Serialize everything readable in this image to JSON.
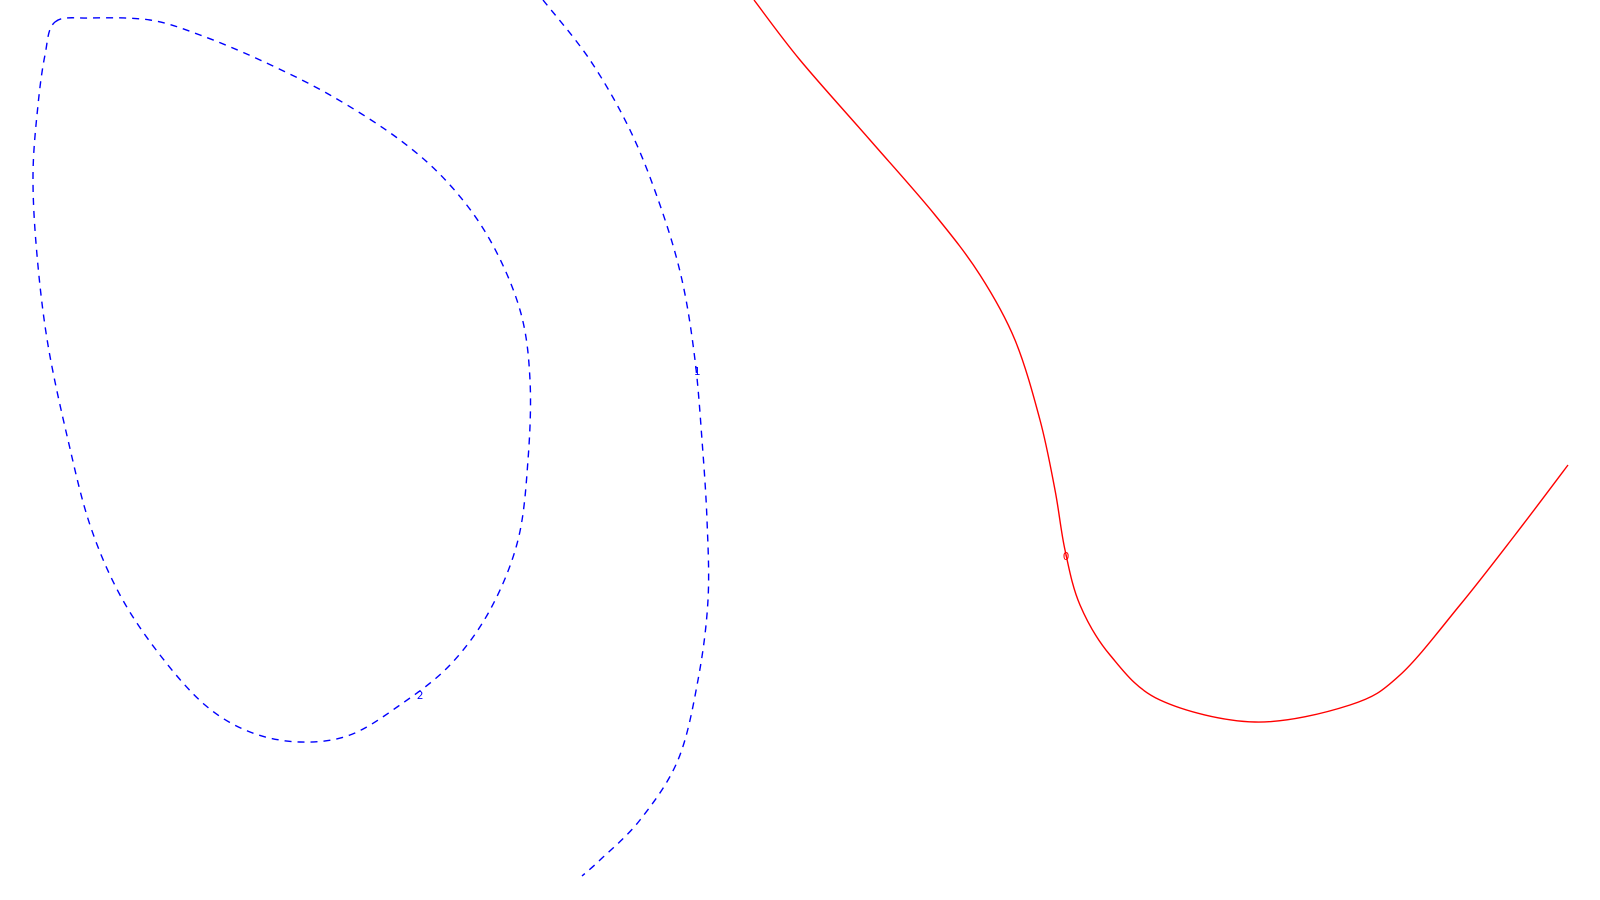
{
  "chart_data": {
    "type": "contour",
    "title": "",
    "xlabel": "",
    "ylabel": "",
    "grid": false,
    "legend": "none",
    "levels": [
      {
        "label": "2",
        "value": 2,
        "color": "#0000ff",
        "style": "dashed",
        "closed": true,
        "points": [
          [
            55,
            22
          ],
          [
            90,
            18
          ],
          [
            150,
            20
          ],
          [
            200,
            35
          ],
          [
            260,
            60
          ],
          [
            330,
            95
          ],
          [
            400,
            140
          ],
          [
            450,
            185
          ],
          [
            490,
            240
          ],
          [
            520,
            310
          ],
          [
            530,
            380
          ],
          [
            528,
            460
          ],
          [
            518,
            540
          ],
          [
            490,
            610
          ],
          [
            450,
            665
          ],
          [
            400,
            705
          ],
          [
            350,
            735
          ],
          [
            300,
            742
          ],
          [
            250,
            732
          ],
          [
            205,
            705
          ],
          [
            160,
            655
          ],
          [
            120,
            595
          ],
          [
            90,
            525
          ],
          [
            68,
            440
          ],
          [
            48,
            345
          ],
          [
            37,
            255
          ],
          [
            33,
            175
          ],
          [
            38,
            105
          ],
          [
            45,
            55
          ],
          [
            55,
            22
          ]
        ]
      },
      {
        "label": "1",
        "value": 1,
        "color": "#0000ff",
        "style": "dashed",
        "closed": false,
        "points": [
          [
            543,
            0
          ],
          [
            590,
            60
          ],
          [
            630,
            130
          ],
          [
            660,
            205
          ],
          [
            682,
            280
          ],
          [
            695,
            360
          ],
          [
            702,
            440
          ],
          [
            707,
            520
          ],
          [
            708,
            600
          ],
          [
            698,
            680
          ],
          [
            678,
            760
          ],
          [
            640,
            820
          ],
          [
            600,
            860
          ],
          [
            582,
            876
          ]
        ]
      },
      {
        "label": "0",
        "value": 0,
        "color": "#ff0000",
        "style": "solid",
        "closed": false,
        "points": [
          [
            754,
            0
          ],
          [
            800,
            60
          ],
          [
            870,
            140
          ],
          [
            935,
            215
          ],
          [
            980,
            275
          ],
          [
            1015,
            340
          ],
          [
            1040,
            420
          ],
          [
            1055,
            490
          ],
          [
            1065,
            550
          ],
          [
            1080,
            605
          ],
          [
            1110,
            655
          ],
          [
            1160,
            700
          ],
          [
            1255,
            722
          ],
          [
            1350,
            705
          ],
          [
            1400,
            675
          ],
          [
            1460,
            605
          ],
          [
            1515,
            535
          ],
          [
            1568,
            465
          ]
        ]
      }
    ],
    "labels": [
      {
        "text": "2",
        "x": 420,
        "y": 696,
        "color": "#0000ff"
      },
      {
        "text": "1",
        "x": 697,
        "y": 372,
        "color": "#0000ff"
      },
      {
        "text": "0",
        "x": 1066,
        "y": 557,
        "color": "#ff0000"
      }
    ]
  }
}
